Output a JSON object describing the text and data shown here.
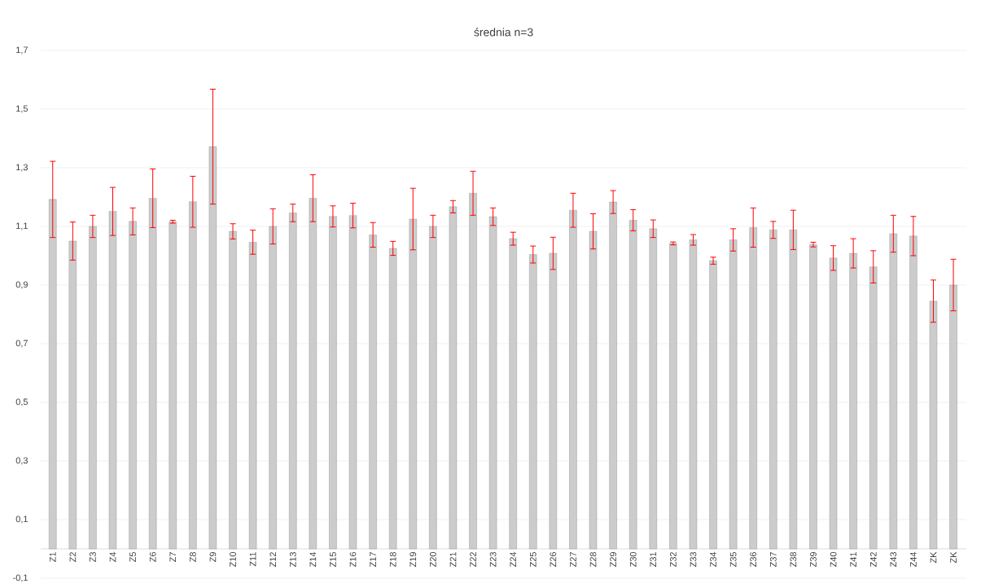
{
  "chart_data": {
    "type": "bar",
    "title": "średnia n=3",
    "categories": [
      "Z1",
      "Z2",
      "Z3",
      "Z4",
      "Z5",
      "Z6",
      "Z7",
      "Z8",
      "Z9",
      "Z10",
      "Z11",
      "Z12",
      "Z13",
      "Z14",
      "Z15",
      "Z16",
      "Z17",
      "Z18",
      "Z19",
      "Z20",
      "Z21",
      "Z22",
      "Z23",
      "Z24",
      "Z25",
      "Z26",
      "Z27",
      "Z28",
      "Z29",
      "Z30",
      "Z31",
      "Z32",
      "Z33",
      "Z34",
      "Z35",
      "Z36",
      "Z37",
      "Z38",
      "Z39",
      "Z40",
      "Z41",
      "Z42",
      "Z43",
      "Z44",
      "ZK",
      "ZK"
    ],
    "values": [
      1.192,
      1.05,
      1.1,
      1.151,
      1.117,
      1.196,
      1.116,
      1.184,
      1.372,
      1.083,
      1.046,
      1.1,
      1.146,
      1.196,
      1.134,
      1.137,
      1.071,
      1.025,
      1.125,
      1.1,
      1.167,
      1.213,
      1.133,
      1.058,
      1.004,
      1.008,
      1.155,
      1.083,
      1.183,
      1.121,
      1.092,
      1.042,
      1.054,
      0.983,
      1.054,
      1.096,
      1.088,
      1.088,
      1.038,
      0.992,
      1.008,
      0.962,
      1.075,
      1.067,
      0.845,
      0.9
    ],
    "errors": [
      0.13,
      0.065,
      0.038,
      0.082,
      0.046,
      0.1,
      0.005,
      0.087,
      0.196,
      0.026,
      0.041,
      0.06,
      0.03,
      0.08,
      0.036,
      0.042,
      0.042,
      0.024,
      0.105,
      0.038,
      0.021,
      0.075,
      0.03,
      0.022,
      0.029,
      0.055,
      0.058,
      0.06,
      0.039,
      0.036,
      0.03,
      0.005,
      0.018,
      0.012,
      0.038,
      0.067,
      0.029,
      0.067,
      0.008,
      0.042,
      0.05,
      0.055,
      0.063,
      0.067,
      0.072,
      0.088
    ],
    "color": "#cccccc",
    "ylim": [
      -0.1,
      1.7
    ],
    "yticks": [
      {
        "value": -0.1,
        "label": "-0,1"
      },
      {
        "value": 0.1,
        "label": "0,1"
      },
      {
        "value": 0.3,
        "label": "0,3"
      },
      {
        "value": 0.5,
        "label": "0,5"
      },
      {
        "value": 0.7,
        "label": "0,7"
      },
      {
        "value": 0.9,
        "label": "0,9"
      },
      {
        "value": 1.1,
        "label": "1,1"
      },
      {
        "value": 1.3,
        "label": "1,3"
      },
      {
        "value": 1.5,
        "label": "1,5"
      },
      {
        "value": 1.7,
        "label": "1,7"
      }
    ],
    "grid": "y"
  }
}
